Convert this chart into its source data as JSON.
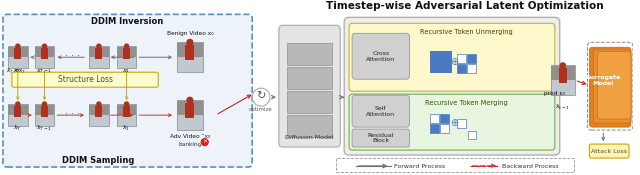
{
  "title": "Timestep-wise Adversarial Latent Optimization",
  "ddim_title": "DDIM Inversion",
  "ddim_sampling_title": "DDIM Sampling",
  "structure_loss_label": "Structure Loss",
  "optimize_label": "optimize",
  "benign_label": "Benign Video x₀",
  "adv_label": "Adv Video ˆx₀",
  "banking_label": "banking",
  "pred_label": "pred ε₀",
  "cross_attention_label": "Cross\nAttention",
  "self_attention_label": "Self\nAttention",
  "residual_label": "Residual\nBlock",
  "diffusion_model_label": "Diffusion Model",
  "recursive_unmerging_label": "Recursive Token Unmerging",
  "recursive_merging_label": "Recursive Token Merging",
  "surrogate_label": "Surrogate\nModel",
  "attack_loss_label": "Attack Loss",
  "forward_process_label": "Forward Process",
  "backward_process_label": "Backward Process",
  "white": "#ffffff",
  "ddim_fill": "#eef3fa",
  "ddim_border": "#5a8ec8",
  "structure_loss_fill": "#fefbd0",
  "structure_loss_border": "#c8aa00",
  "gray_fill": "#d8d8d8",
  "gray_border": "#aaaaaa",
  "yellow_fill": "#fef9cc",
  "yellow_border": "#c8b820",
  "green_fill": "#e8f5e0",
  "green_border": "#70b040",
  "attn_fill": "#d0d0d0",
  "attn_border": "#999999",
  "orange1": "#f0a040",
  "orange2": "#e89030",
  "orange3": "#e08020",
  "attack_fill": "#fef3c0",
  "attack_border": "#c8a800",
  "arrow_gray": "#707070",
  "arrow_red": "#cc2222",
  "arrow_yellow": "#c8a800",
  "blue_token": "#4a7ac0",
  "text_dark": "#111111",
  "legend_dash": "#999999"
}
